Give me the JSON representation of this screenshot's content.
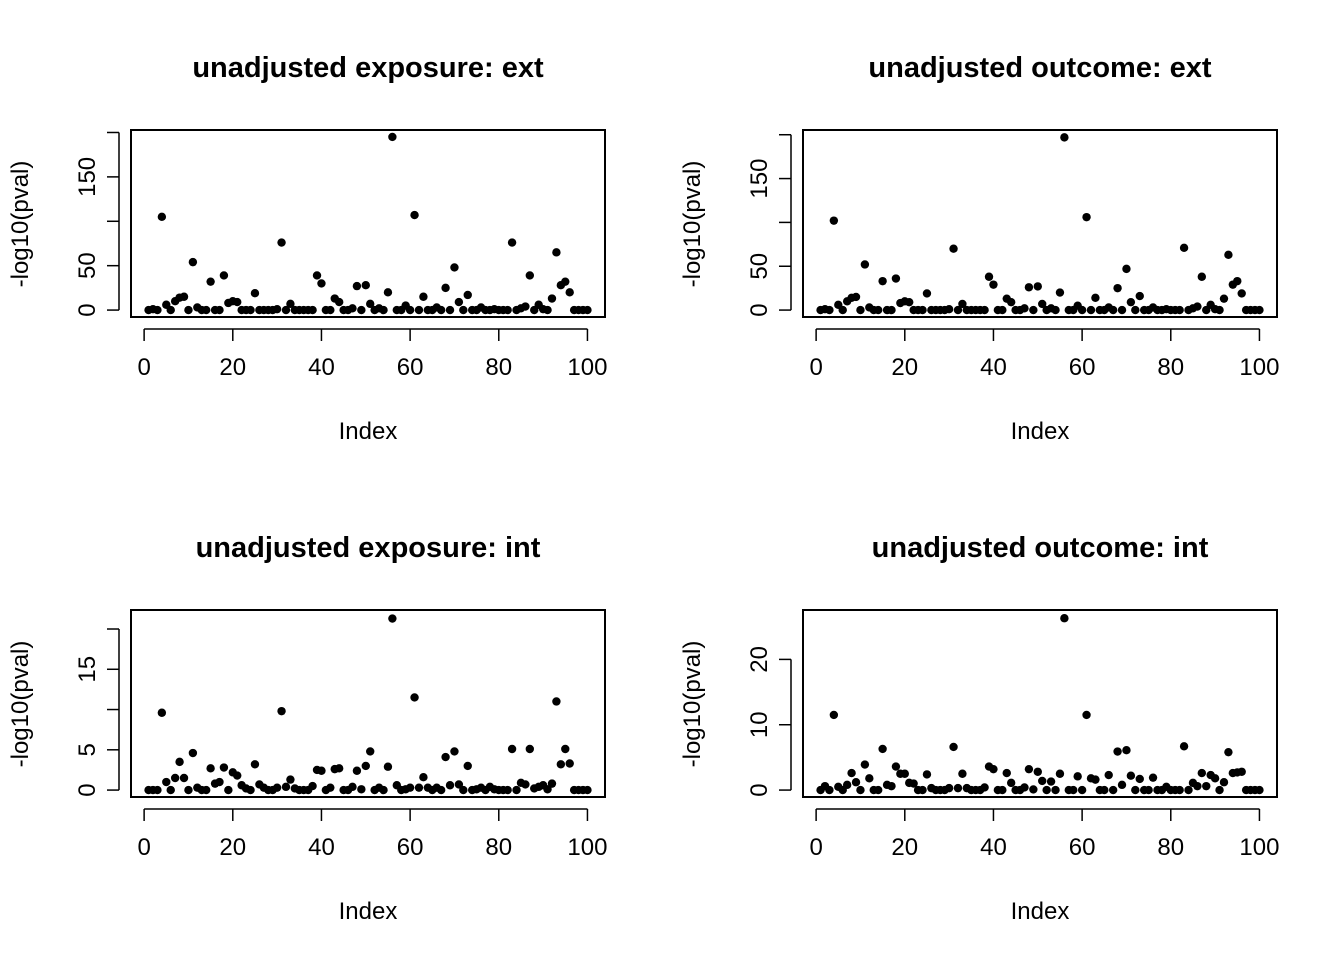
{
  "chart_data": [
    {
      "type": "scatter",
      "title": "unadjusted exposure: ext",
      "xlabel": "Index",
      "ylabel": "-log10(pval)",
      "xlim": [
        -2.96,
        103.96
      ],
      "ylim": [
        -7.8,
        202.8
      ],
      "xticks": [
        0,
        20,
        40,
        60,
        80,
        100
      ],
      "yticks": [
        0,
        50,
        100,
        150,
        200
      ],
      "ytick_labels": [
        "0",
        "50",
        "",
        "150",
        ""
      ],
      "series": [
        {
          "x": [
            1,
            2,
            3,
            4,
            5,
            6,
            7,
            8,
            9,
            10,
            11,
            12,
            13,
            14,
            15,
            16,
            17,
            18,
            19,
            20,
            21,
            22,
            23,
            24,
            25,
            26,
            27,
            28,
            29,
            30,
            31,
            32,
            33,
            34,
            35,
            36,
            37,
            38,
            39,
            40,
            41,
            42,
            43,
            44,
            45,
            46,
            47,
            48,
            49,
            50,
            51,
            52,
            53,
            54,
            55,
            56,
            57,
            58,
            59,
            60,
            61,
            62,
            63,
            64,
            65,
            66,
            67,
            68,
            69,
            70,
            71,
            72,
            73,
            74,
            75,
            76,
            77,
            78,
            79,
            80,
            81,
            82,
            83,
            84,
            85,
            86,
            87,
            88,
            89,
            90,
            91,
            92,
            93,
            94,
            95,
            96,
            97,
            98,
            99,
            100
          ],
          "y": [
            0,
            1,
            0,
            105,
            6,
            0,
            10,
            14,
            15,
            0,
            54,
            3,
            0,
            0,
            32,
            0,
            0,
            39,
            8,
            10,
            9,
            0,
            0,
            0,
            19,
            0,
            0,
            0,
            0,
            1,
            76,
            0,
            7,
            0,
            0,
            0,
            0,
            0,
            39,
            30,
            0,
            0,
            13,
            9,
            0,
            0,
            2,
            27,
            0,
            28,
            7,
            0,
            2,
            0,
            20,
            195,
            0,
            0,
            5,
            0,
            107,
            0,
            15,
            0,
            0,
            3,
            0,
            25,
            0,
            48,
            9,
            0,
            17,
            0,
            0,
            3,
            0,
            0,
            1,
            0,
            0,
            0,
            76,
            0,
            2,
            4,
            39,
            0,
            6,
            1,
            0,
            13,
            65,
            28,
            32,
            20,
            0,
            0,
            0,
            0
          ]
        }
      ]
    },
    {
      "type": "scatter",
      "title": "unadjusted outcome: ext",
      "xlabel": "Index",
      "ylabel": "-log10(pval)",
      "xlim": [
        -2.96,
        103.96
      ],
      "ylim": [
        -7.9,
        205.4
      ],
      "xticks": [
        0,
        20,
        40,
        60,
        80,
        100
      ],
      "yticks": [
        0,
        50,
        100,
        150,
        200
      ],
      "ytick_labels": [
        "0",
        "50",
        "",
        "150",
        ""
      ],
      "series": [
        {
          "x": [
            1,
            2,
            3,
            4,
            5,
            6,
            7,
            8,
            9,
            10,
            11,
            12,
            13,
            14,
            15,
            16,
            17,
            18,
            19,
            20,
            21,
            22,
            23,
            24,
            25,
            26,
            27,
            28,
            29,
            30,
            31,
            32,
            33,
            34,
            35,
            36,
            37,
            38,
            39,
            40,
            41,
            42,
            43,
            44,
            45,
            46,
            47,
            48,
            49,
            50,
            51,
            52,
            53,
            54,
            55,
            56,
            57,
            58,
            59,
            60,
            61,
            62,
            63,
            64,
            65,
            66,
            67,
            68,
            69,
            70,
            71,
            72,
            73,
            74,
            75,
            76,
            77,
            78,
            79,
            80,
            81,
            82,
            83,
            84,
            85,
            86,
            87,
            88,
            89,
            90,
            91,
            92,
            93,
            94,
            95,
            96,
            97,
            98,
            99,
            100
          ],
          "y": [
            0,
            1,
            0,
            102,
            6,
            0,
            10,
            14,
            15,
            0,
            52,
            3,
            0,
            0,
            33,
            0,
            0,
            36,
            8,
            10,
            9,
            0,
            0,
            0,
            19,
            0,
            0,
            0,
            0,
            1,
            70,
            0,
            7,
            0,
            0,
            0,
            0,
            0,
            38,
            29,
            0,
            0,
            13,
            9,
            0,
            0,
            2,
            26,
            0,
            27,
            7,
            0,
            2,
            0,
            20,
            197,
            0,
            0,
            5,
            0,
            106,
            0,
            14,
            0,
            0,
            3,
            0,
            25,
            0,
            47,
            9,
            0,
            16,
            0,
            0,
            3,
            0,
            0,
            1,
            0,
            0,
            0,
            71,
            0,
            2,
            4,
            38,
            0,
            6,
            1,
            0,
            13,
            63,
            29,
            33,
            19,
            0,
            0,
            0,
            0
          ]
        }
      ]
    },
    {
      "type": "scatter",
      "title": "unadjusted exposure: int",
      "xlabel": "Index",
      "ylabel": "-log10(pval)",
      "xlim": [
        -2.96,
        103.96
      ],
      "ylim": [
        -0.86,
        22.36
      ],
      "xticks": [
        0,
        20,
        40,
        60,
        80,
        100
      ],
      "yticks": [
        0,
        5,
        10,
        15,
        20
      ],
      "ytick_labels": [
        "0",
        "5",
        "",
        "15",
        ""
      ],
      "series": [
        {
          "x": [
            1,
            2,
            3,
            4,
            5,
            6,
            7,
            8,
            9,
            10,
            11,
            12,
            13,
            14,
            15,
            16,
            17,
            18,
            19,
            20,
            21,
            22,
            23,
            24,
            25,
            26,
            27,
            28,
            29,
            30,
            31,
            32,
            33,
            34,
            35,
            36,
            37,
            38,
            39,
            40,
            41,
            42,
            43,
            44,
            45,
            46,
            47,
            48,
            49,
            50,
            51,
            52,
            53,
            54,
            55,
            56,
            57,
            58,
            59,
            60,
            61,
            62,
            63,
            64,
            65,
            66,
            67,
            68,
            69,
            70,
            71,
            72,
            73,
            74,
            75,
            76,
            77,
            78,
            79,
            80,
            81,
            82,
            83,
            84,
            85,
            86,
            87,
            88,
            89,
            90,
            91,
            92,
            93,
            94,
            95,
            96,
            97,
            98,
            99,
            100
          ],
          "y": [
            0,
            0,
            0,
            9.6,
            1.0,
            0,
            1.5,
            3.5,
            1.5,
            0,
            4.6,
            0.3,
            0,
            0,
            2.7,
            0.8,
            1.0,
            2.8,
            0,
            2.2,
            1.8,
            0.6,
            0.2,
            0,
            3.2,
            0.7,
            0.3,
            0,
            0,
            0.3,
            9.8,
            0.4,
            1.3,
            0.2,
            0,
            0,
            0,
            0.5,
            2.5,
            2.4,
            0,
            0.3,
            2.6,
            2.7,
            0,
            0,
            0.4,
            2.4,
            0.1,
            3.0,
            4.8,
            0,
            0.3,
            0,
            2.9,
            21.3,
            0.6,
            0,
            0.1,
            0.3,
            11.5,
            0.3,
            1.6,
            0.3,
            0,
            0.3,
            0,
            4.1,
            0.6,
            4.8,
            0.7,
            0,
            3.0,
            0,
            0.1,
            0.3,
            0,
            0.4,
            0.1,
            0,
            0,
            0,
            5.1,
            0,
            0.9,
            0.7,
            5.1,
            0.2,
            0.4,
            0.6,
            0.1,
            0.8,
            11.0,
            3.2,
            5.1,
            3.3,
            0,
            0,
            0,
            0
          ]
        }
      ]
    },
    {
      "type": "scatter",
      "title": "unadjusted outcome: int",
      "xlabel": "Index",
      "ylabel": "-log10(pval)",
      "xlim": [
        -2.96,
        103.96
      ],
      "ylim": [
        -1.06,
        27.56
      ],
      "xticks": [
        0,
        20,
        40,
        60,
        80,
        100
      ],
      "yticks": [
        0,
        10,
        20
      ],
      "ytick_labels": [
        "0",
        "10",
        "20"
      ],
      "series": [
        {
          "x": [
            1,
            2,
            3,
            4,
            5,
            6,
            7,
            8,
            9,
            10,
            11,
            12,
            13,
            14,
            15,
            16,
            17,
            18,
            19,
            20,
            21,
            22,
            23,
            24,
            25,
            26,
            27,
            28,
            29,
            30,
            31,
            32,
            33,
            34,
            35,
            36,
            37,
            38,
            39,
            40,
            41,
            42,
            43,
            44,
            45,
            46,
            47,
            48,
            49,
            50,
            51,
            52,
            53,
            54,
            55,
            56,
            57,
            58,
            59,
            60,
            61,
            62,
            63,
            64,
            65,
            66,
            67,
            68,
            69,
            70,
            71,
            72,
            73,
            74,
            75,
            76,
            77,
            78,
            79,
            80,
            81,
            82,
            83,
            84,
            85,
            86,
            87,
            88,
            89,
            90,
            91,
            92,
            93,
            94,
            95,
            96,
            97,
            98,
            99,
            100
          ],
          "y": [
            0,
            0.6,
            0,
            11.5,
            0.5,
            0,
            0.8,
            2.6,
            1.2,
            0,
            3.9,
            1.8,
            0,
            0,
            6.3,
            0.8,
            0.6,
            3.6,
            2.5,
            2.5,
            1.1,
            1.0,
            0,
            0,
            2.4,
            0.3,
            0,
            0,
            0,
            0.3,
            6.6,
            0.3,
            2.5,
            0.3,
            0,
            0,
            0,
            0.4,
            3.6,
            3.2,
            0,
            0,
            2.6,
            1.1,
            0,
            0,
            0.4,
            3.2,
            0.1,
            2.8,
            1.4,
            0,
            1.3,
            0,
            2.5,
            26.3,
            0,
            0,
            2.1,
            0,
            11.5,
            1.8,
            1.6,
            0,
            0,
            2.3,
            0,
            5.9,
            0.8,
            6.1,
            2.2,
            0,
            1.7,
            0,
            0,
            1.9,
            0,
            0,
            0.5,
            0,
            0,
            0,
            6.7,
            0,
            1.1,
            0.6,
            2.6,
            0.6,
            2.3,
            1.8,
            0,
            1.2,
            5.8,
            2.6,
            2.7,
            2.8,
            0,
            0,
            0,
            0
          ]
        }
      ]
    }
  ]
}
